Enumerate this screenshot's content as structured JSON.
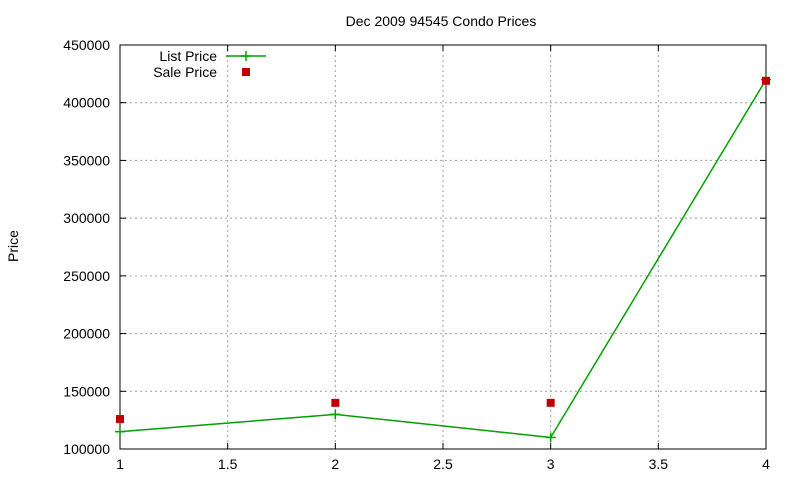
{
  "chart_data": {
    "type": "line",
    "title": "Dec 2009 94545 Condo Prices",
    "xlabel": "",
    "ylabel": "Price",
    "xlim": [
      1,
      4
    ],
    "ylim": [
      100000,
      450000
    ],
    "x_ticks": [
      "1",
      "1.5",
      "2",
      "2.5",
      "3",
      "3.5",
      "4"
    ],
    "y_ticks": [
      "100000",
      "150000",
      "200000",
      "250000",
      "300000",
      "350000",
      "400000",
      "450000"
    ],
    "grid": true,
    "legend_position": "top-left",
    "series": [
      {
        "name": "List Price",
        "style": "linespoints",
        "marker": "plus",
        "color": "#00a000",
        "x": [
          1,
          2,
          3,
          4
        ],
        "y": [
          115000,
          130000,
          110000,
          420000
        ]
      },
      {
        "name": "Sale Price",
        "style": "points",
        "marker": "square",
        "color": "#c00000",
        "x": [
          1,
          2,
          3,
          4
        ],
        "y": [
          126000,
          140000,
          140000,
          419000
        ]
      }
    ]
  }
}
